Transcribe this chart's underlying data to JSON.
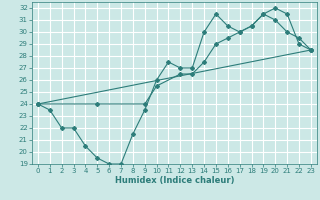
{
  "xlabel": "Humidex (Indice chaleur)",
  "ylabel": "",
  "xlim": [
    -0.5,
    23.5
  ],
  "ylim": [
    19,
    32.5
  ],
  "yticks": [
    19,
    20,
    21,
    22,
    23,
    24,
    25,
    26,
    27,
    28,
    29,
    30,
    31,
    32
  ],
  "xticks": [
    0,
    1,
    2,
    3,
    4,
    5,
    6,
    7,
    8,
    9,
    10,
    11,
    12,
    13,
    14,
    15,
    16,
    17,
    18,
    19,
    20,
    21,
    22,
    23
  ],
  "bg_color": "#cce8e6",
  "grid_color": "#ffffff",
  "line_color": "#2d7d7a",
  "line1_x": [
    0,
    1,
    2,
    3,
    4,
    5,
    6,
    7,
    8,
    9,
    10,
    11,
    12,
    13,
    14,
    15,
    16,
    17,
    18,
    19,
    20,
    21,
    22,
    23
  ],
  "line1_y": [
    24,
    23.5,
    22,
    22,
    20.5,
    19.5,
    19,
    19,
    21.5,
    23.5,
    26,
    27.5,
    27,
    27,
    30,
    31.5,
    30.5,
    30,
    30.5,
    31.5,
    31,
    30,
    29.5,
    28.5
  ],
  "line2_x": [
    0,
    5,
    9,
    10,
    12,
    13,
    14,
    15,
    16,
    17,
    18,
    19,
    20,
    21,
    22,
    23
  ],
  "line2_y": [
    24,
    24,
    24,
    25.5,
    26.5,
    26.5,
    27.5,
    29,
    29.5,
    30,
    30.5,
    31.5,
    32,
    31.5,
    29,
    28.5
  ],
  "line3_x": [
    0,
    23
  ],
  "line3_y": [
    24,
    28.5
  ]
}
